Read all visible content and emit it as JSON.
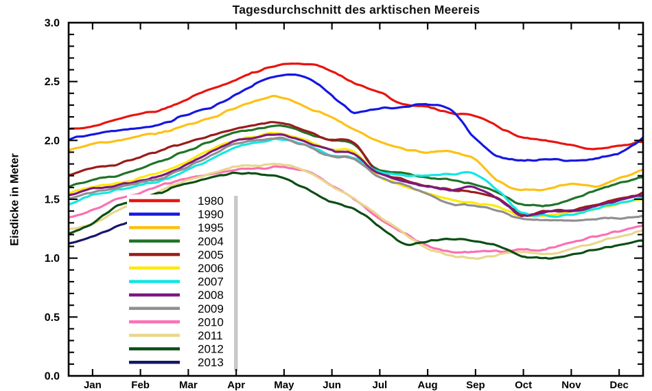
{
  "title": "Tagesdurchschnitt des arktischen Meereis",
  "y_axis": {
    "label": "Eisdicke in Meter",
    "min": 0,
    "max": 3,
    "major_step": 0.5,
    "minor_step": 0.1,
    "tick_labels": [
      "0.0",
      "0.5",
      "1.0",
      "1.5",
      "2.0",
      "2.5",
      "3.0"
    ]
  },
  "x_axis": {
    "months": [
      "Jan",
      "Feb",
      "Mar",
      "Apr",
      "May",
      "Jun",
      "Jul",
      "Aug",
      "Sep",
      "Oct",
      "Nov",
      "Dec"
    ]
  },
  "legend": {
    "shadow_color": "#c9c9c9",
    "background": "#ffffff"
  },
  "chart_data": {
    "type": "line",
    "x_unit": "day-of-year",
    "x_days": [
      0,
      14,
      31,
      45,
      59,
      73,
      90,
      104,
      120,
      134,
      151,
      165,
      181,
      195,
      212,
      226,
      243,
      257,
      273,
      287,
      304,
      318,
      334,
      348,
      364
    ],
    "ylim": [
      0,
      3
    ],
    "grid": false,
    "legend_position": "inside-left",
    "series": [
      {
        "name": "1980",
        "color": "#e81410",
        "values": [
          2.09,
          2.12,
          2.18,
          2.22,
          2.26,
          2.34,
          2.44,
          2.5,
          2.59,
          2.64,
          2.65,
          2.6,
          2.48,
          2.42,
          2.31,
          2.29,
          2.23,
          2.21,
          2.11,
          2.03,
          2.0,
          1.96,
          1.93,
          1.95,
          1.99
        ]
      },
      {
        "name": "1990",
        "color": "#1518e0",
        "values": [
          2.01,
          2.05,
          2.09,
          2.11,
          2.14,
          2.21,
          2.28,
          2.37,
          2.49,
          2.55,
          2.53,
          2.4,
          2.24,
          2.27,
          2.28,
          2.31,
          2.25,
          2.02,
          1.86,
          1.83,
          1.84,
          1.83,
          1.85,
          1.89,
          2.02
        ]
      },
      {
        "name": "1995",
        "color": "#fdc113",
        "values": [
          1.91,
          1.97,
          2.0,
          2.04,
          2.07,
          2.12,
          2.19,
          2.27,
          2.34,
          2.37,
          2.28,
          2.21,
          2.09,
          2.0,
          1.93,
          1.9,
          1.9,
          1.84,
          1.65,
          1.58,
          1.59,
          1.63,
          1.61,
          1.67,
          1.75
        ]
      },
      {
        "name": "2004",
        "color": "#207328",
        "values": [
          1.61,
          1.66,
          1.7,
          1.76,
          1.83,
          1.9,
          1.99,
          2.07,
          2.1,
          2.13,
          2.06,
          2.01,
          1.96,
          1.76,
          1.72,
          1.69,
          1.66,
          1.63,
          1.55,
          1.46,
          1.45,
          1.5,
          1.57,
          1.63,
          1.69
        ]
      },
      {
        "name": "2005",
        "color": "#9b1b1b",
        "values": [
          1.7,
          1.76,
          1.8,
          1.86,
          1.92,
          1.98,
          2.04,
          2.09,
          2.13,
          2.15,
          2.08,
          2.01,
          1.98,
          1.74,
          1.67,
          1.62,
          1.58,
          1.56,
          1.5,
          1.38,
          1.4,
          1.41,
          1.45,
          1.5,
          1.55
        ]
      },
      {
        "name": "2006",
        "color": "#fce903",
        "values": [
          1.55,
          1.6,
          1.63,
          1.68,
          1.73,
          1.81,
          1.92,
          1.99,
          2.04,
          2.06,
          2.0,
          1.93,
          1.9,
          1.71,
          1.62,
          1.56,
          1.5,
          1.47,
          1.43,
          1.36,
          1.37,
          1.39,
          1.42,
          1.46,
          1.5
        ]
      },
      {
        "name": "2007",
        "color": "#12e7e3",
        "values": [
          1.46,
          1.53,
          1.58,
          1.62,
          1.66,
          1.74,
          1.84,
          1.93,
          1.98,
          2.01,
          1.96,
          1.88,
          1.85,
          1.74,
          1.7,
          1.7,
          1.71,
          1.72,
          1.56,
          1.39,
          1.36,
          1.37,
          1.42,
          1.47,
          1.51
        ]
      },
      {
        "name": "2008",
        "color": "#7c1880",
        "values": [
          1.53,
          1.59,
          1.62,
          1.66,
          1.7,
          1.78,
          1.9,
          1.99,
          2.03,
          2.05,
          1.98,
          1.92,
          1.88,
          1.73,
          1.66,
          1.61,
          1.58,
          1.6,
          1.5,
          1.36,
          1.4,
          1.4,
          1.44,
          1.49,
          1.53
        ]
      },
      {
        "name": "2009",
        "color": "#909090",
        "values": [
          1.5,
          1.56,
          1.6,
          1.64,
          1.68,
          1.76,
          1.87,
          1.96,
          2.0,
          2.02,
          1.95,
          1.87,
          1.84,
          1.7,
          1.62,
          1.55,
          1.46,
          1.45,
          1.4,
          1.33,
          1.32,
          1.32,
          1.33,
          1.34,
          1.36
        ]
      },
      {
        "name": "2010",
        "color": "#fc70b2",
        "values": [
          1.34,
          1.4,
          1.5,
          1.55,
          1.62,
          1.67,
          1.71,
          1.75,
          1.76,
          1.77,
          1.74,
          1.63,
          1.5,
          1.36,
          1.22,
          1.11,
          1.05,
          1.06,
          1.06,
          1.07,
          1.08,
          1.13,
          1.19,
          1.23,
          1.28
        ]
      },
      {
        "name": "2011",
        "color": "#e7d78c",
        "values": [
          1.24,
          1.29,
          1.4,
          1.49,
          1.58,
          1.65,
          1.72,
          1.77,
          1.79,
          1.8,
          1.74,
          1.63,
          1.5,
          1.37,
          1.22,
          1.09,
          1.02,
          1.0,
          1.03,
          1.05,
          1.03,
          1.08,
          1.13,
          1.18,
          1.23
        ]
      },
      {
        "name": "2012",
        "color": "#0c4e14",
        "values": [
          1.2,
          1.29,
          1.44,
          1.5,
          1.56,
          1.63,
          1.68,
          1.72,
          1.71,
          1.69,
          1.59,
          1.49,
          1.42,
          1.29,
          1.13,
          1.14,
          1.16,
          1.15,
          1.1,
          1.02,
          1.0,
          1.03,
          1.07,
          1.11,
          1.15
        ]
      },
      {
        "name": "2013",
        "color": "#16166b",
        "values": [
          1.12,
          1.18,
          1.27,
          1.33,
          1.38,
          null,
          null,
          null,
          null,
          null,
          null,
          null,
          null,
          null,
          null,
          null,
          null,
          null,
          null,
          null,
          null,
          null,
          null,
          null,
          null
        ]
      }
    ]
  }
}
